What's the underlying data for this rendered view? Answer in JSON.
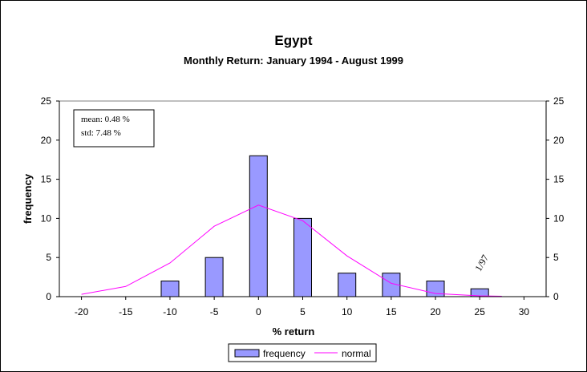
{
  "chart_data": {
    "type": "bar",
    "title": "Egypt",
    "subtitle": "Monthly Return: January 1994 - August 1999",
    "xlabel": "% return",
    "ylabel": "frequency",
    "x_ticks": [
      -20,
      -15,
      -10,
      -5,
      0,
      5,
      10,
      15,
      20,
      25,
      30
    ],
    "y_ticks": [
      0,
      5,
      10,
      15,
      20,
      25
    ],
    "y2_ticks": [
      0,
      5,
      10,
      15,
      20,
      25
    ],
    "ylim": [
      0,
      25
    ],
    "xlim": [
      -22.5,
      32.5
    ],
    "grid": false,
    "legend_position": "bottom",
    "series": [
      {
        "name": "frequency",
        "type": "bar",
        "color": "#9999ff",
        "x": [
          -20,
          -15,
          -10,
          -5,
          0,
          5,
          10,
          15,
          20,
          25
        ],
        "values": [
          0,
          0,
          2,
          5,
          18,
          10,
          3,
          3,
          2,
          1
        ]
      },
      {
        "name": "normal",
        "type": "line",
        "color": "#ff00ff",
        "x": [
          -20,
          -15,
          -10,
          -5,
          0,
          5,
          10,
          15,
          20,
          25,
          27.5
        ],
        "values": [
          0.3,
          1.3,
          4.3,
          9.0,
          11.7,
          9.7,
          5.2,
          1.7,
          0.4,
          0.1,
          0.05
        ]
      }
    ],
    "stats_box": {
      "mean": "mean: 0.48 %",
      "std": "std: 7.48 %"
    },
    "annotations": [
      {
        "text": "1/97",
        "x": 25
      }
    ]
  }
}
